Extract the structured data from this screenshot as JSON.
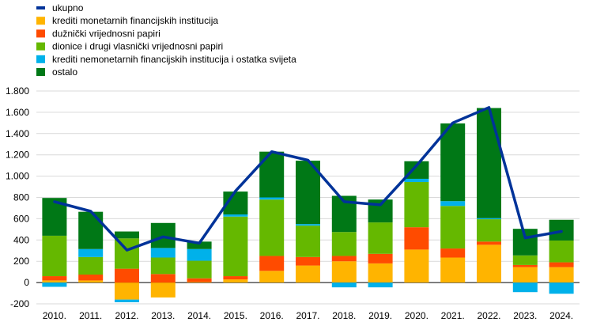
{
  "chart_data": {
    "type": "bar",
    "stacked": true,
    "overlay_line": "ukupno",
    "categories": [
      "2010.",
      "2011.",
      "2012.",
      "2013.",
      "2014.",
      "2015.",
      "2016.",
      "2017.",
      "2018.",
      "2019.",
      "2020.",
      "2021.",
      "2022.",
      "2023.",
      "2024."
    ],
    "ylim": [
      -200,
      1800
    ],
    "yticks": [
      -200,
      0,
      200,
      400,
      600,
      800,
      1000,
      1200,
      1400,
      1600,
      1800
    ],
    "ytick_labels": [
      "-200",
      "0",
      "200",
      "400",
      "600",
      "800",
      "1.000",
      "1.200",
      "1.400",
      "1.600",
      "1.800"
    ],
    "grid": "horizontal",
    "legend_position": "top-left",
    "line": {
      "name": "ukupno",
      "color": "#003399",
      "values": [
        760,
        670,
        305,
        430,
        370,
        860,
        1230,
        1150,
        760,
        730,
        1100,
        1500,
        1645,
        420,
        480
      ]
    },
    "series": [
      {
        "name": "krediti monetarnih financijskih institucija",
        "color": "#FFB400",
        "values": [
          20,
          20,
          -160,
          -140,
          5,
          30,
          110,
          160,
          200,
          180,
          310,
          235,
          355,
          145,
          145
        ]
      },
      {
        "name": "dužnički vrijednosni papiri",
        "color": "#FF4B00",
        "values": [
          40,
          55,
          130,
          80,
          35,
          30,
          140,
          80,
          50,
          90,
          210,
          85,
          30,
          20,
          45
        ]
      },
      {
        "name": "dionice i drugi vlasnički vrijednosni papiri",
        "color": "#65B800",
        "values": [
          380,
          165,
          285,
          155,
          165,
          560,
          530,
          295,
          225,
          295,
          425,
          400,
          210,
          90,
          205
        ]
      },
      {
        "name": "krediti nemonetarnih financijskih institucija i ostatka svijeta",
        "color": "#00B1EA",
        "values": [
          -40,
          75,
          -25,
          90,
          110,
          20,
          20,
          15,
          -45,
          -45,
          30,
          45,
          10,
          -90,
          -105
        ]
      },
      {
        "name": "ostalo",
        "color": "#007816",
        "values": [
          355,
          350,
          65,
          235,
          70,
          215,
          430,
          595,
          340,
          215,
          165,
          730,
          1035,
          250,
          195
        ]
      }
    ]
  }
}
